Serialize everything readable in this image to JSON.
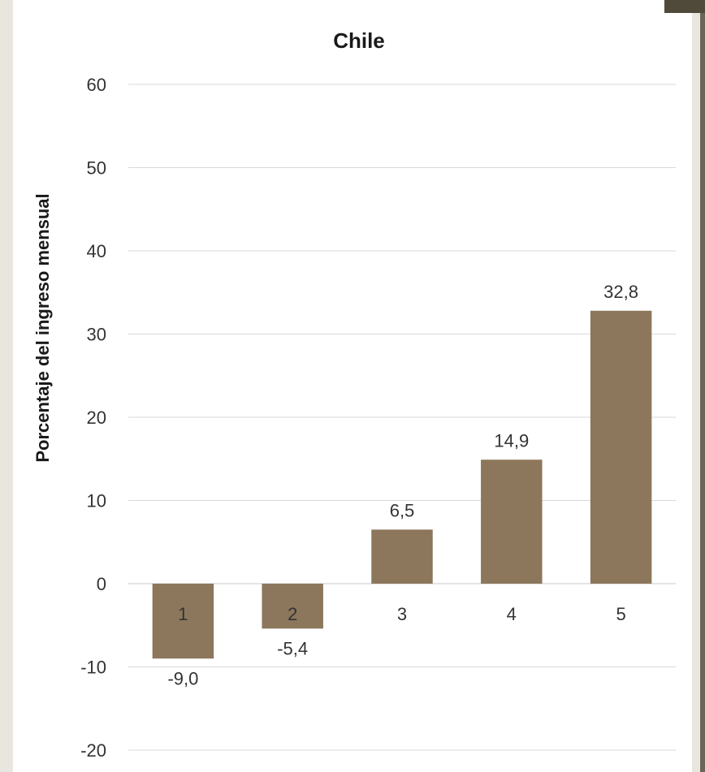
{
  "chart_data": {
    "type": "bar",
    "title": "Chile",
    "xlabel": "",
    "ylabel": "Porcentaje del ingreso mensual",
    "categories": [
      "1",
      "2",
      "3",
      "4",
      "5"
    ],
    "values": [
      -9.0,
      -5.4,
      6.5,
      14.9,
      32.8
    ],
    "value_labels": [
      "-9,0",
      "-5,4",
      "6,5",
      "14,9",
      "32,8"
    ],
    "ylim": [
      -20,
      60
    ],
    "yticks": [
      60,
      50,
      40,
      30,
      20,
      10,
      0,
      -10,
      -20
    ],
    "grid": true,
    "legend": "none",
    "bar_color": "#8c775c"
  }
}
